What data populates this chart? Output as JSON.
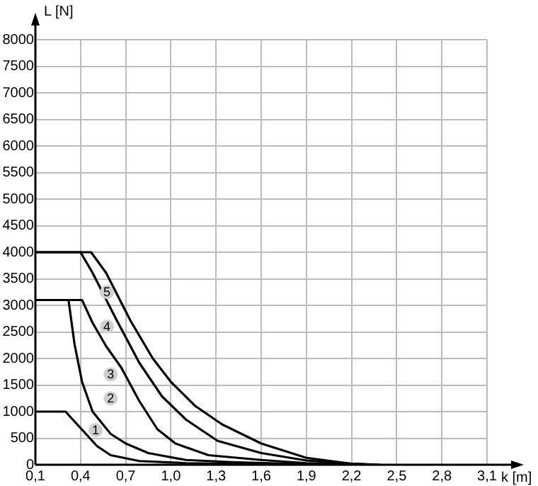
{
  "chart_data": {
    "type": "line",
    "xlabel": "k [m]",
    "ylabel": "L [N]",
    "xlim": [
      0.1,
      3.1
    ],
    "ylim": [
      0,
      8000
    ],
    "xticks": [
      {
        "value": 0.1,
        "label": "0,1"
      },
      {
        "value": 0.4,
        "label": "0,4"
      },
      {
        "value": 0.7,
        "label": "0,7"
      },
      {
        "value": 1.0,
        "label": "1,0"
      },
      {
        "value": 1.3,
        "label": "1,3"
      },
      {
        "value": 1.6,
        "label": "1,6"
      },
      {
        "value": 1.9,
        "label": "1,9"
      },
      {
        "value": 2.2,
        "label": "2,2"
      },
      {
        "value": 2.5,
        "label": "2,5"
      },
      {
        "value": 2.8,
        "label": "2,8"
      },
      {
        "value": 3.1,
        "label": "3,1"
      }
    ],
    "yticks": [
      0,
      500,
      1000,
      1500,
      2000,
      2500,
      3000,
      3500,
      4000,
      4500,
      5000,
      5500,
      6000,
      6500,
      7000,
      7500,
      8000
    ],
    "grid": true,
    "legend": false,
    "marker": "none",
    "line_style": "solid",
    "series": [
      {
        "color": "#000000",
        "x": [
          0.1,
          0.3,
          0.51,
          0.6,
          0.79,
          1.1,
          1.6,
          2.2
        ],
        "values": [
          1000,
          1000,
          350,
          180,
          70,
          30,
          10,
          0
        ]
      },
      {
        "color": "#000000",
        "x": [
          0.1,
          0.32,
          0.36,
          0.41,
          0.48,
          0.6,
          0.7,
          0.85,
          1.1,
          1.4,
          1.9,
          2.3
        ],
        "values": [
          3100,
          3100,
          2270,
          1560,
          1000,
          580,
          400,
          220,
          90,
          50,
          10,
          0
        ]
      },
      {
        "color": "#000000",
        "x": [
          0.1,
          0.41,
          0.48,
          0.57,
          0.67,
          0.79,
          0.91,
          1.03,
          1.25,
          1.6,
          1.9,
          2.3
        ],
        "values": [
          3100,
          3100,
          2670,
          2230,
          1830,
          1200,
          670,
          400,
          180,
          90,
          30,
          0
        ]
      },
      {
        "color": "#000000",
        "x": [
          0.1,
          0.4,
          0.48,
          0.64,
          0.79,
          0.94,
          1.1,
          1.31,
          1.6,
          1.9,
          2.2,
          2.35
        ],
        "values": [
          4000,
          4000,
          3610,
          2720,
          1920,
          1290,
          850,
          450,
          220,
          80,
          20,
          0
        ]
      },
      {
        "color": "#000000",
        "x": [
          0.1,
          0.47,
          0.57,
          0.73,
          0.88,
          1.0,
          1.16,
          1.34,
          1.6,
          1.9,
          2.2,
          2.39
        ],
        "values": [
          4000,
          4000,
          3610,
          2720,
          2000,
          1560,
          1110,
          760,
          400,
          130,
          20,
          0
        ]
      }
    ],
    "annotations": [
      {
        "text": "1",
        "x": 0.5,
        "y": 650
      },
      {
        "text": "2",
        "x": 0.6,
        "y": 1250
      },
      {
        "text": "3",
        "x": 0.6,
        "y": 1700
      },
      {
        "text": "4",
        "x": 0.575,
        "y": 2600
      },
      {
        "text": "5",
        "x": 0.575,
        "y": 3250
      }
    ]
  }
}
